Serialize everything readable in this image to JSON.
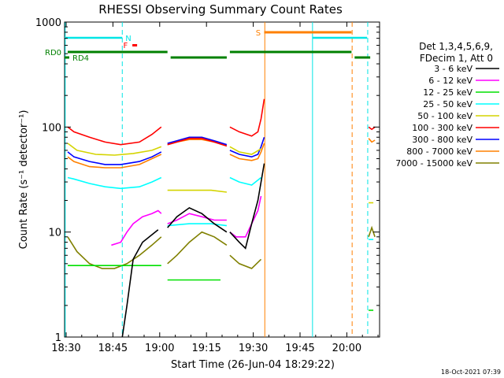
{
  "chart_data": {
    "type": "line",
    "title": "RHESSI Observing Summary Count Rates",
    "xlabel": "Start Time (26-Jun-04 18:29:22)",
    "ylabel": "Count Rate (s⁻¹ detector⁻¹)",
    "y_scale": "log",
    "ylim": [
      1,
      1000
    ],
    "xlim_minutes": [
      0,
      101
    ],
    "x_ticks": [
      {
        "min": 0.5,
        "label": "18:30"
      },
      {
        "min": 15.5,
        "label": "18:45"
      },
      {
        "min": 30.5,
        "label": "19:00"
      },
      {
        "min": 45.5,
        "label": "19:15"
      },
      {
        "min": 60.5,
        "label": "19:30"
      },
      {
        "min": 75.5,
        "label": "19:45"
      },
      {
        "min": 90.5,
        "label": "20:00"
      }
    ],
    "y_ticks": [
      {
        "v": 1,
        "label": "1"
      },
      {
        "v": 10,
        "label": "10"
      },
      {
        "v": 100,
        "label": "100"
      },
      {
        "v": 1000,
        "label": "1000"
      }
    ],
    "legend_header": [
      "Det 1,3,4,5,6,9,",
      "FDecim 1, Att 0"
    ],
    "legend_position": "right",
    "timestamp": "18-Oct-2021 07:39",
    "flag_labels": {
      "rd0": "RD0",
      "rd4": "RD4",
      "n": "N",
      "f": "F",
      "s": "S"
    },
    "flags": {
      "night": {
        "color": "#00e5e5",
        "segments": [
          [
            0,
            18.5
          ],
          [
            79.5,
            97
          ]
        ]
      },
      "saa": {
        "color": "#ff8000",
        "segments": [
          [
            64,
            92
          ]
        ]
      },
      "rd0": {
        "color": "#008000",
        "segments": [
          [
            1,
            33
          ],
          [
            34,
            52
          ],
          [
            53,
            92
          ],
          [
            93,
            98
          ]
        ]
      },
      "flare_marker": {
        "color": "#ff0000",
        "min": 22.5
      }
    },
    "v_lines": [
      {
        "min": 0.2,
        "color": "#00e5e5",
        "style": "solid"
      },
      {
        "min": 18.5,
        "color": "#00e5e5",
        "style": "dashed"
      },
      {
        "min": 64.2,
        "color": "#ff8000",
        "style": "solid"
      },
      {
        "min": 79.5,
        "color": "#00e5e5",
        "style": "solid"
      },
      {
        "min": 92.2,
        "color": "#ff8000",
        "style": "dashed"
      },
      {
        "min": 97.2,
        "color": "#00e5e5",
        "style": "dashed"
      }
    ],
    "series": [
      {
        "name": "3 - 6 keV",
        "color": "#000000",
        "segments": [
          {
            "x": [
              18.5,
              20,
              22,
              25,
              30
            ],
            "y": [
              1.0,
              2.0,
              5.5,
              8.0,
              10.5
            ]
          },
          {
            "x": [
              33,
              36,
              40,
              44,
              48,
              52
            ],
            "y": [
              11,
              14,
              17,
              15,
              12,
              10
            ]
          },
          {
            "x": [
              53,
              56,
              58,
              60,
              62,
              64
            ],
            "y": [
              10,
              8,
              7,
              12,
              20,
              45
            ]
          }
        ]
      },
      {
        "name": "6 - 12 keV",
        "color": "#ff00ff",
        "segments": [
          {
            "x": [
              15,
              18,
              20,
              22,
              25,
              28,
              30,
              31
            ],
            "y": [
              7.5,
              8,
              10,
              12,
              14,
              15,
              16,
              15
            ]
          },
          {
            "x": [
              33,
              36,
              40,
              44,
              48,
              52
            ],
            "y": [
              12,
              13,
              15,
              14,
              13,
              13
            ]
          },
          {
            "x": [
              53,
              55,
              58,
              60,
              62,
              63
            ],
            "y": [
              10,
              9,
              9,
              12,
              16,
              22
            ]
          }
        ]
      },
      {
        "name": "12 - 25 keV",
        "color": "#00e000",
        "segments": [
          {
            "x": [
              1,
              10,
              20,
              31
            ],
            "y": [
              4.8,
              4.8,
              4.8,
              4.8
            ]
          },
          {
            "x": [
              33,
              40,
              47,
              50
            ],
            "y": [
              3.5,
              3.5,
              3.5,
              3.5
            ]
          },
          {
            "x": [
              97.5,
              99
            ],
            "y": [
              1.8,
              1.8
            ]
          }
        ]
      },
      {
        "name": "25 - 50 keV",
        "color": "#00ffff",
        "segments": [
          {
            "x": [
              1,
              3,
              8,
              13,
              18,
              24,
              28,
              31
            ],
            "y": [
              33,
              32,
              29,
              27,
              26,
              27,
              30,
              33
            ]
          },
          {
            "x": [
              33,
              40,
              47,
              52
            ],
            "y": [
              11.5,
              12,
              12,
              11.5
            ]
          },
          {
            "x": [
              53,
              56,
              60,
              63
            ],
            "y": [
              33,
              30,
              28,
              33
            ]
          },
          {
            "x": [
              97.5,
              99
            ],
            "y": [
              8.5,
              8.5
            ]
          }
        ]
      },
      {
        "name": "50 - 100 keV",
        "color": "#d4d400",
        "segments": [
          {
            "x": [
              1,
              4,
              10,
              16,
              22,
              28,
              31
            ],
            "y": [
              70,
              60,
              55,
              54,
              56,
              60,
              65
            ]
          },
          {
            "x": [
              33,
              40,
              47,
              52
            ],
            "y": [
              25,
              25,
              25,
              24
            ]
          },
          {
            "x": [
              53,
              56,
              60,
              63
            ],
            "y": [
              65,
              58,
              55,
              62
            ]
          },
          {
            "x": [
              97.5,
              99
            ],
            "y": [
              19,
              19
            ]
          }
        ]
      },
      {
        "name": "100 - 300 keV",
        "color": "#ff0000",
        "segments": [
          {
            "x": [
              1,
              3,
              8,
              13,
              18,
              24,
              28,
              31
            ],
            "y": [
              100,
              90,
              80,
              72,
              68,
              72,
              85,
              100
            ]
          },
          {
            "x": [
              33,
              36,
              40,
              44,
              48,
              52
            ],
            "y": [
              68,
              72,
              78,
              78,
              72,
              66
            ]
          },
          {
            "x": [
              53,
              56,
              60,
              62,
              63,
              64
            ],
            "y": [
              100,
              90,
              82,
              90,
              120,
              185
            ]
          },
          {
            "x": [
              97.5,
              98.5,
              99.5
            ],
            "y": [
              100,
              95,
              100
            ]
          }
        ]
      },
      {
        "name": "300 - 800 keV",
        "color": "#0000ff",
        "segments": [
          {
            "x": [
              1,
              3,
              8,
              13,
              18,
              24,
              28,
              31
            ],
            "y": [
              58,
              52,
              47,
              44,
              44,
              47,
              52,
              58
            ]
          },
          {
            "x": [
              33,
              36,
              40,
              44,
              48,
              52
            ],
            "y": [
              70,
              74,
              80,
              80,
              74,
              68
            ]
          },
          {
            "x": [
              53,
              56,
              60,
              62,
              63,
              64
            ],
            "y": [
              60,
              55,
              52,
              55,
              65,
              80
            ]
          }
        ]
      },
      {
        "name": "800 - 7000 keV",
        "color": "#ff8000",
        "segments": [
          {
            "x": [
              1,
              3,
              8,
              13,
              18,
              24,
              28,
              31
            ],
            "y": [
              52,
              47,
              42,
              41,
              41,
              44,
              50,
              55
            ]
          },
          {
            "x": [
              33,
              36,
              40,
              44,
              48,
              52
            ],
            "y": [
              68,
              72,
              76,
              76,
              72,
              66
            ]
          },
          {
            "x": [
              53,
              56,
              60,
              62,
              63,
              64
            ],
            "y": [
              55,
              50,
              48,
              50,
              58,
              70
            ]
          },
          {
            "x": [
              97.5,
              98.5,
              99.5
            ],
            "y": [
              78,
              72,
              75
            ]
          }
        ]
      },
      {
        "name": "7000 - 15000 keV",
        "color": "#808000",
        "segments": [
          {
            "x": [
              1,
              4,
              8,
              12,
              16,
              20,
              24,
              28,
              31
            ],
            "y": [
              9,
              6.5,
              5,
              4.5,
              4.5,
              5,
              6,
              7.5,
              9
            ]
          },
          {
            "x": [
              33,
              36,
              40,
              44,
              48,
              52
            ],
            "y": [
              5,
              6,
              8,
              10,
              9,
              7.5
            ]
          },
          {
            "x": [
              53,
              56,
              60,
              63
            ],
            "y": [
              6,
              5,
              4.5,
              5.5
            ]
          },
          {
            "x": [
              97.5,
              98.5,
              99.5
            ],
            "y": [
              9,
              11,
              9
            ]
          }
        ]
      }
    ]
  }
}
